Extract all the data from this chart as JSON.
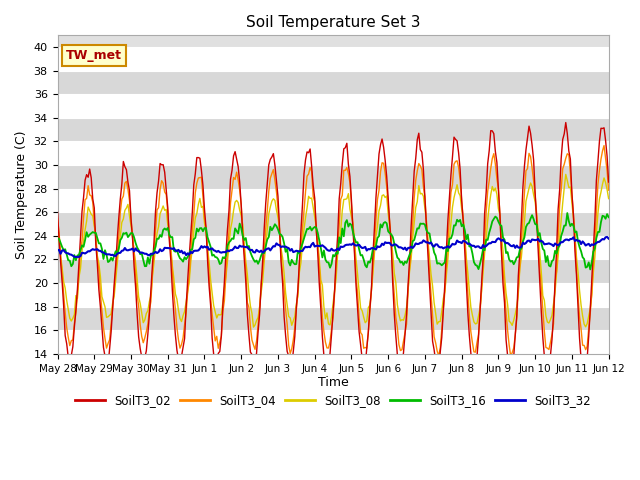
{
  "title": "Soil Temperature Set 3",
  "xlabel": "Time",
  "ylabel": "Soil Temperature (C)",
  "ylim": [
    14,
    41
  ],
  "yticks": [
    14,
    16,
    18,
    20,
    22,
    24,
    26,
    28,
    30,
    32,
    34,
    36,
    38,
    40
  ],
  "bg_color": "#e0e0e0",
  "annotation": "TW_met",
  "series_colors": {
    "SoilT3_02": "#cc0000",
    "SoilT3_04": "#ff8800",
    "SoilT3_08": "#ddcc00",
    "SoilT3_16": "#00bb00",
    "SoilT3_32": "#0000cc"
  },
  "band_colors": [
    "#ffffff",
    "#d8d8d8"
  ],
  "x_tick_labels": [
    "May 28",
    "May 29",
    "May 30",
    "May 31",
    "Jun 1",
    "Jun 2",
    "Jun 3",
    "Jun 4",
    "Jun 5",
    "Jun 6",
    "Jun 7",
    "Jun 8",
    "Jun 9",
    "Jun 10",
    "Jun 11",
    "Jun 12"
  ]
}
